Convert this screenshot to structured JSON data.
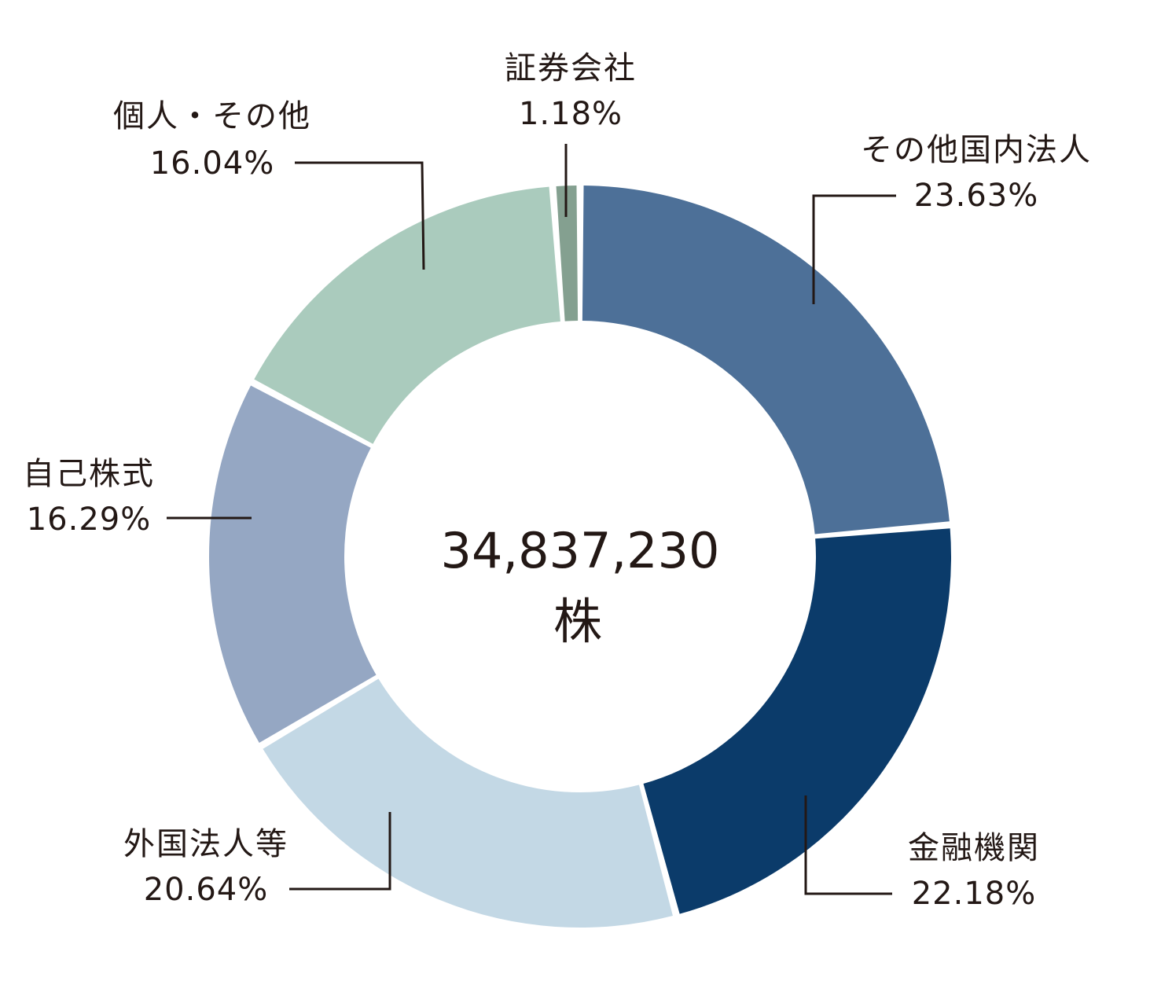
{
  "chart_data": {
    "type": "pie",
    "subtype": "donut",
    "center_total": "34,837,230",
    "center_unit": "株",
    "slices": [
      {
        "label": "その他国内法人",
        "value": 23.63,
        "value_text": "23.63%",
        "color": "#4d7098"
      },
      {
        "label": "金融機関",
        "value": 22.18,
        "value_text": "22.18%",
        "color": "#0b3b6a"
      },
      {
        "label": "外国法人等",
        "value": 20.64,
        "value_text": "20.64%",
        "color": "#c3d8e5"
      },
      {
        "label": "自己株式",
        "value": 16.29,
        "value_text": "16.29%",
        "color": "#95a7c3"
      },
      {
        "label": "個人・その他",
        "value": 16.04,
        "value_text": "16.04%",
        "color": "#aacbbd"
      },
      {
        "label": "証券会社",
        "value": 1.18,
        "value_text": "1.18%",
        "color": "#84a090"
      }
    ]
  }
}
